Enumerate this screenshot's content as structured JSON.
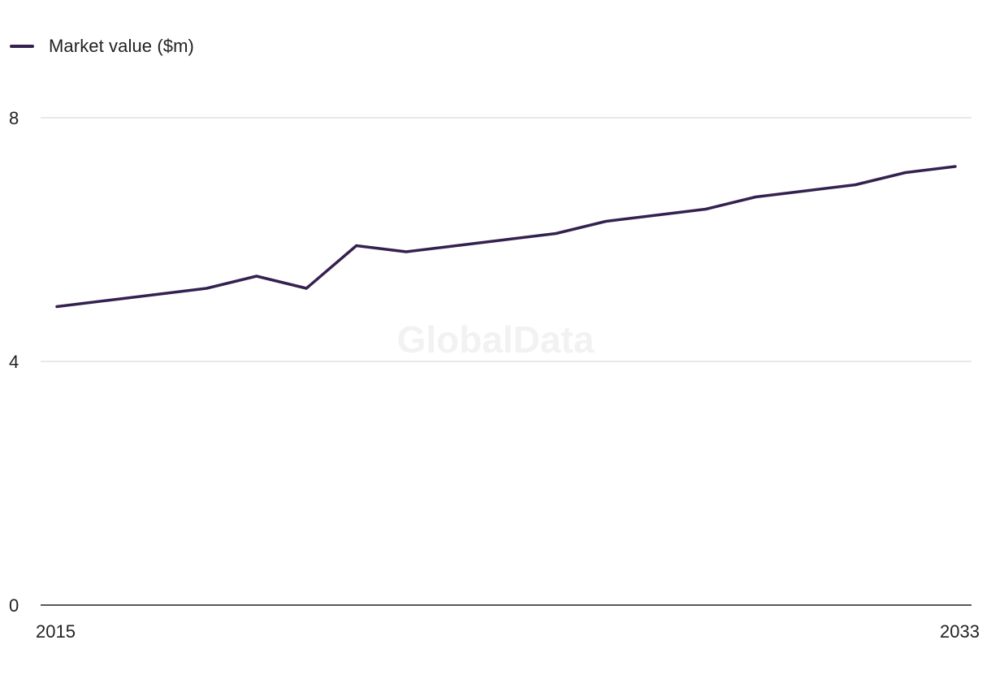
{
  "legend": {
    "label": "Market value ($m)"
  },
  "watermark": "GlobalData",
  "colors": {
    "series": "#35214f",
    "grid": "#d9d9d9",
    "axis": "#222222"
  },
  "chart_data": {
    "type": "line",
    "x": [
      2015,
      2016,
      2017,
      2018,
      2019,
      2020,
      2021,
      2022,
      2023,
      2024,
      2025,
      2026,
      2027,
      2028,
      2029,
      2030,
      2031,
      2032,
      2033
    ],
    "series": [
      {
        "name": "Market value ($m)",
        "values": [
          4.9,
          5.0,
          5.1,
          5.2,
          5.4,
          5.2,
          5.9,
          5.8,
          5.9,
          6.0,
          6.1,
          6.3,
          6.4,
          6.5,
          6.7,
          6.8,
          6.9,
          7.1,
          7.2
        ]
      }
    ],
    "ylim": [
      0,
      8
    ],
    "y_ticks": [
      0,
      4,
      8
    ],
    "x_tick_labels": [
      "2015",
      "2033"
    ],
    "grid": true,
    "legend_position": "top-left"
  }
}
